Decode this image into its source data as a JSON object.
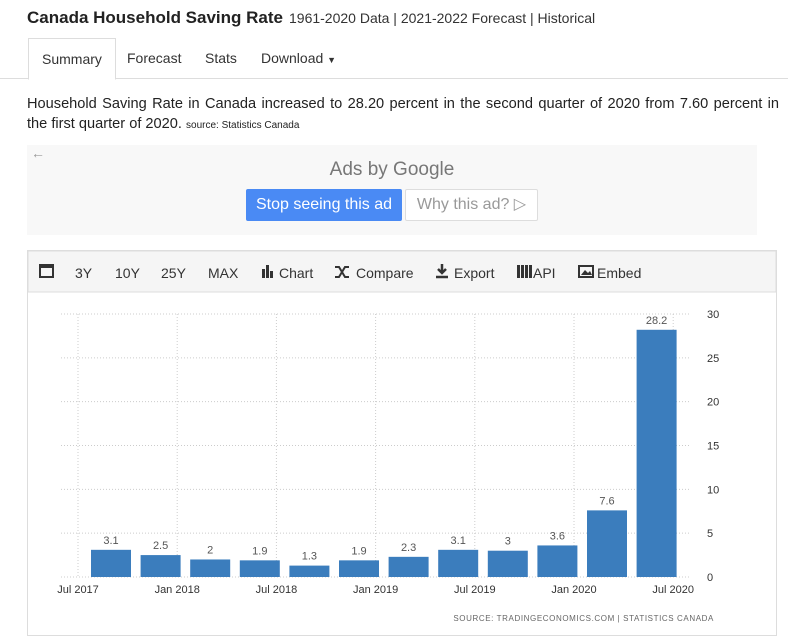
{
  "header": {
    "title": "Canada Household Saving Rate",
    "subtitle": "1961-2020 Data | 2021-2022 Forecast | Historical"
  },
  "tabs": [
    "Summary",
    "Forecast",
    "Stats",
    "Download"
  ],
  "summary": {
    "text": "Household Saving Rate in Canada increased to 28.20 percent in the second quarter of 2020 from 7.60 percent in the first quarter of 2020.",
    "source": "source: Statistics Canada"
  },
  "ad": {
    "label": "Ads by Google",
    "stop": "Stop seeing this ad",
    "why": "Why this ad?"
  },
  "toolbar": [
    "3Y",
    "10Y",
    "25Y",
    "MAX",
    "Chart",
    "Compare",
    "Export",
    "API",
    "Embed"
  ],
  "chart_data": {
    "type": "bar",
    "values": [
      3.1,
      2.5,
      2,
      1.9,
      1.3,
      1.9,
      2.3,
      3.1,
      3,
      3.6,
      7.6,
      28.2
    ],
    "color": "#3b7dbd",
    "xticks": [
      "Jul 2017",
      "Jan 2018",
      "Jul 2018",
      "Jan 2019",
      "Jul 2019",
      "Jan 2020",
      "Jul 2020"
    ],
    "ylim": [
      0,
      30
    ],
    "yticks": [
      0,
      5,
      10,
      15,
      20,
      25,
      30
    ],
    "grid": true,
    "source": "SOURCE: TRADINGECONOMICS.COM | STATISTICS CANADA"
  }
}
